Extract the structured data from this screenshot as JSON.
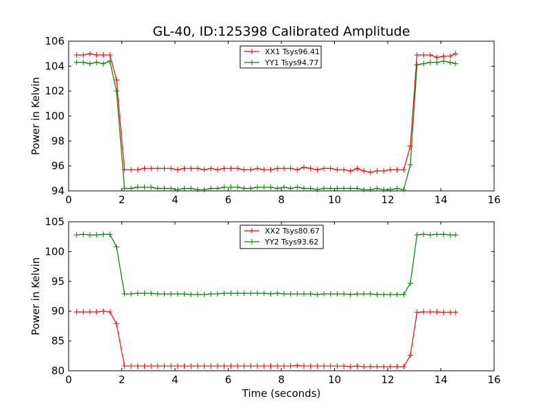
{
  "chart_data": [
    {
      "type": "line",
      "title": "GL-40, ID:125398 Calibrated Amplitude",
      "xlabel": "",
      "ylabel": "Power in Kelvin",
      "xlim": [
        0,
        16
      ],
      "ylim": [
        94,
        106
      ],
      "xticks": [
        0,
        2,
        4,
        6,
        8,
        10,
        12,
        14,
        16
      ],
      "yticks": [
        94,
        96,
        98,
        100,
        102,
        104,
        106
      ],
      "legend_position": "top-center",
      "x": [
        0.3,
        0.55,
        0.8,
        1.05,
        1.3,
        1.55,
        1.8,
        2.1,
        2.35,
        2.6,
        2.85,
        3.1,
        3.35,
        3.6,
        3.85,
        4.1,
        4.35,
        4.6,
        4.85,
        5.1,
        5.35,
        5.6,
        5.85,
        6.1,
        6.35,
        6.6,
        6.85,
        7.1,
        7.35,
        7.6,
        7.85,
        8.1,
        8.35,
        8.6,
        8.85,
        9.1,
        9.35,
        9.6,
        9.85,
        10.1,
        10.35,
        10.6,
        10.85,
        11.1,
        11.35,
        11.6,
        11.85,
        12.1,
        12.35,
        12.6,
        12.85,
        13.1,
        13.35,
        13.6,
        13.85,
        14.1,
        14.35,
        14.55
      ],
      "series": [
        {
          "name": "XX1 Tsys96.41",
          "color": "#ff0000",
          "values": [
            104.9,
            104.9,
            105.0,
            104.9,
            104.9,
            104.9,
            102.9,
            95.7,
            95.7,
            95.7,
            95.8,
            95.8,
            95.8,
            95.8,
            95.8,
            95.7,
            95.8,
            95.8,
            95.8,
            95.7,
            95.8,
            95.7,
            95.8,
            95.8,
            95.8,
            95.7,
            95.7,
            95.8,
            95.7,
            95.7,
            95.8,
            95.8,
            95.8,
            95.7,
            95.9,
            95.8,
            95.7,
            95.8,
            95.8,
            95.7,
            95.7,
            95.6,
            95.8,
            95.6,
            95.5,
            95.6,
            95.6,
            95.7,
            95.7,
            95.7,
            97.6,
            104.9,
            104.9,
            104.9,
            104.7,
            104.8,
            104.8,
            105.0
          ]
        },
        {
          "name": "YY1 Tsys94.77",
          "color": "#008000",
          "values": [
            104.3,
            104.3,
            104.2,
            104.3,
            104.2,
            104.4,
            102.0,
            94.2,
            94.2,
            94.3,
            94.3,
            94.3,
            94.2,
            94.2,
            94.2,
            94.1,
            94.2,
            94.2,
            94.1,
            94.1,
            94.2,
            94.2,
            94.3,
            94.3,
            94.3,
            94.2,
            94.2,
            94.3,
            94.3,
            94.3,
            94.2,
            94.3,
            94.2,
            94.3,
            94.2,
            94.2,
            94.1,
            94.2,
            94.2,
            94.2,
            94.2,
            94.2,
            94.2,
            94.1,
            94.1,
            94.2,
            94.1,
            94.1,
            94.2,
            94.1,
            96.1,
            104.1,
            104.2,
            104.3,
            104.3,
            104.4,
            104.3,
            104.2
          ]
        }
      ]
    },
    {
      "type": "line",
      "title": "",
      "xlabel": "Time (seconds)",
      "ylabel": "Power in Kelvin",
      "xlim": [
        0,
        16
      ],
      "ylim": [
        80,
        105
      ],
      "xticks": [
        0,
        2,
        4,
        6,
        8,
        10,
        12,
        14,
        16
      ],
      "yticks": [
        80,
        85,
        90,
        95,
        100,
        105
      ],
      "legend_position": "top-center",
      "x": [
        0.3,
        0.55,
        0.8,
        1.05,
        1.3,
        1.55,
        1.8,
        2.1,
        2.35,
        2.6,
        2.85,
        3.1,
        3.35,
        3.6,
        3.85,
        4.1,
        4.35,
        4.6,
        4.85,
        5.1,
        5.35,
        5.6,
        5.85,
        6.1,
        6.35,
        6.6,
        6.85,
        7.1,
        7.35,
        7.6,
        7.85,
        8.1,
        8.35,
        8.6,
        8.85,
        9.1,
        9.35,
        9.6,
        9.85,
        10.1,
        10.35,
        10.6,
        10.85,
        11.1,
        11.35,
        11.6,
        11.85,
        12.1,
        12.35,
        12.6,
        12.85,
        13.1,
        13.35,
        13.6,
        13.85,
        14.1,
        14.35,
        14.55
      ],
      "series": [
        {
          "name": "XX2 Tsys80.67",
          "color": "#ff0000",
          "values": [
            89.9,
            89.9,
            89.9,
            89.9,
            90.0,
            89.9,
            87.9,
            80.8,
            80.8,
            80.8,
            80.8,
            80.8,
            80.8,
            80.8,
            80.8,
            80.8,
            80.8,
            80.8,
            80.8,
            80.8,
            80.8,
            80.8,
            80.8,
            80.8,
            80.8,
            80.8,
            80.8,
            80.8,
            80.8,
            80.8,
            80.8,
            80.8,
            80.8,
            80.9,
            80.8,
            80.8,
            80.8,
            80.8,
            80.8,
            80.8,
            80.8,
            80.7,
            80.8,
            80.7,
            80.7,
            80.7,
            80.7,
            80.7,
            80.7,
            80.7,
            82.6,
            89.8,
            89.9,
            89.9,
            89.9,
            89.8,
            89.8,
            89.8
          ]
        },
        {
          "name": "YY2 Tsys93.62",
          "color": "#008000",
          "values": [
            102.8,
            102.9,
            102.8,
            102.8,
            102.9,
            102.9,
            100.8,
            92.9,
            92.9,
            93.0,
            93.0,
            93.0,
            92.9,
            92.9,
            92.9,
            92.9,
            92.9,
            92.8,
            92.8,
            92.8,
            92.9,
            92.9,
            93.0,
            93.0,
            93.0,
            93.0,
            93.0,
            93.0,
            93.0,
            92.9,
            93.0,
            92.9,
            92.9,
            92.9,
            92.9,
            92.9,
            92.8,
            92.9,
            92.9,
            92.9,
            92.9,
            92.8,
            92.9,
            92.9,
            92.9,
            92.8,
            92.8,
            92.8,
            92.8,
            92.8,
            94.7,
            102.8,
            102.9,
            102.8,
            102.9,
            102.9,
            102.8,
            102.8
          ]
        }
      ]
    }
  ]
}
